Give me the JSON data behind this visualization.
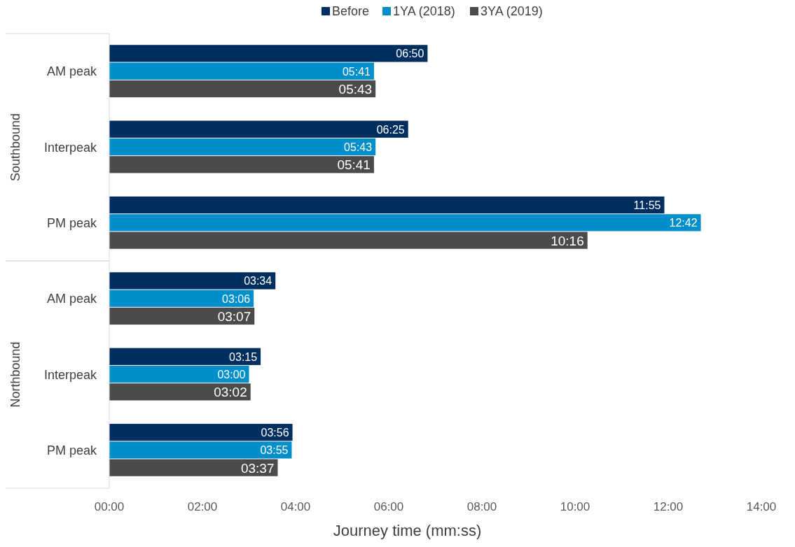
{
  "chart_data": {
    "type": "bar",
    "orientation": "horizontal",
    "xlabel": "Journey time (mm:ss)",
    "categories": [
      "AM peak",
      "Interpeak",
      "PM peak",
      "AM peak",
      "Interpeak",
      "PM peak"
    ],
    "annotations": [
      "Southbound",
      "Northbound"
    ],
    "series": [
      {
        "name": "Before",
        "color": "#002f5f",
        "values": [
          6.8333,
          6.4167,
          11.9167,
          3.5667,
          3.25,
          3.9333
        ],
        "value_labels": [
          "06:50",
          "06:25",
          "11:55",
          "03:34",
          "03:15",
          "03:56"
        ]
      },
      {
        "name": "1YA (2018)",
        "color": "#008fcb",
        "values": [
          5.6833,
          5.7167,
          12.7,
          3.1,
          3.0,
          3.9167
        ],
        "value_labels": [
          "05:41",
          "05:43",
          "12:42",
          "03:06",
          "03:00",
          "03:55"
        ]
      },
      {
        "name": "3YA (2019)",
        "color": "#4b4b4b",
        "values": [
          5.7167,
          5.6833,
          10.2667,
          3.1167,
          3.0333,
          3.6167
        ],
        "value_labels": [
          "05:43",
          "05:41",
          "10:16",
          "03:07",
          "03:02",
          "03:37"
        ]
      }
    ],
    "xlim": [
      0,
      14
    ],
    "xticks": [
      {
        "value": 0,
        "label": "00:00"
      },
      {
        "value": 2,
        "label": "02:00"
      },
      {
        "value": 4,
        "label": "04:00"
      },
      {
        "value": 6,
        "label": "06:00"
      },
      {
        "value": 8,
        "label": "08:00"
      },
      {
        "value": 10,
        "label": "10:00"
      },
      {
        "value": 12,
        "label": "12:00"
      },
      {
        "value": 14,
        "label": "14:00"
      }
    ],
    "legend": "top",
    "grid": false
  }
}
